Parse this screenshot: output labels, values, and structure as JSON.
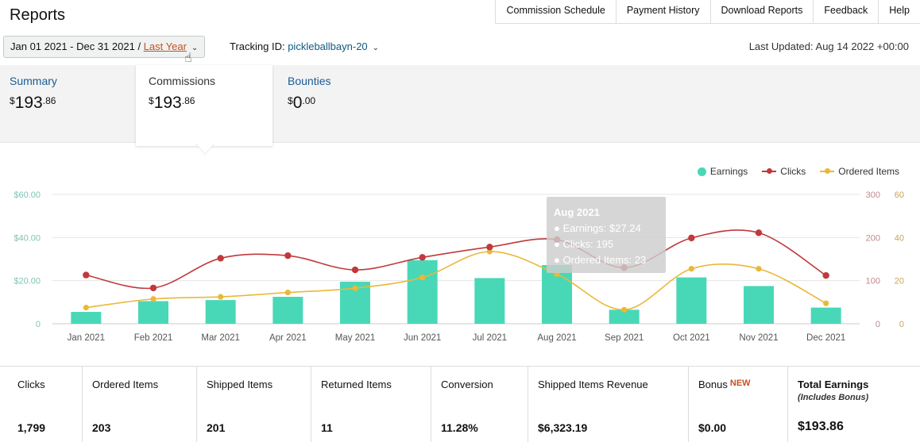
{
  "page_title": "Reports",
  "nav": [
    "Commission Schedule",
    "Payment History",
    "Download Reports",
    "Feedback",
    "Help"
  ],
  "date_range": {
    "range": "Jan 01 2021 - Dec 31 2021",
    "separator": " / ",
    "preset": "Last Year"
  },
  "tracking": {
    "label": "Tracking ID: ",
    "id": "pickleballbayn-20"
  },
  "last_updated": "Last Updated: Aug 14 2022 +00:00",
  "tabs": [
    {
      "label": "Summary",
      "currency": "$",
      "whole": "193",
      "cents": ".86"
    },
    {
      "label": "Commissions",
      "currency": "$",
      "whole": "193",
      "cents": ".86"
    },
    {
      "label": "Bounties",
      "currency": "$",
      "whole": "0",
      "cents": ".00"
    }
  ],
  "legend": [
    {
      "label": "Earnings",
      "color": "#48d8b7"
    },
    {
      "label": "Clicks",
      "color": "#c0393c"
    },
    {
      "label": "Ordered Items",
      "color": "#eab838"
    }
  ],
  "tooltip": {
    "title": "Aug 2021",
    "earnings": "Earnings: $27.24",
    "clicks": "Clicks: 195",
    "ordered": "Ordered Items: 23"
  },
  "chart_data": {
    "type": "bar",
    "categories": [
      "Jan 2021",
      "Feb 2021",
      "Mar 2021",
      "Apr 2021",
      "May 2021",
      "Jun 2021",
      "Jul 2021",
      "Aug 2021",
      "Sep 2021",
      "Oct 2021",
      "Nov 2021",
      "Dec 2021"
    ],
    "series": [
      {
        "name": "Earnings",
        "type": "bar",
        "axis": "left",
        "color": "#48d8b7",
        "values": [
          5.5,
          10.5,
          11,
          12.5,
          19.5,
          29.5,
          21.2,
          27.24,
          6.5,
          21.5,
          17.5,
          7.5
        ]
      },
      {
        "name": "Clicks",
        "type": "line",
        "axis": "right1",
        "color": "#c0393c",
        "values": [
          113,
          83,
          152,
          158,
          125,
          154,
          178,
          195,
          130,
          199,
          211,
          112
        ]
      },
      {
        "name": "Ordered Items",
        "type": "line",
        "axis": "right2",
        "color": "#eab838",
        "values": [
          7.5,
          11.5,
          12.5,
          14.5,
          16.5,
          21.5,
          33.5,
          23,
          6.5,
          25.5,
          25.5,
          9.5
        ]
      }
    ],
    "axes": {
      "left": {
        "ticks": [
          "$60.00",
          "$40.00",
          "$20.00",
          "0"
        ],
        "ylim": [
          0,
          60
        ]
      },
      "right1": {
        "ticks": [
          "300",
          "200",
          "100",
          "0"
        ],
        "ylim": [
          0,
          300
        ]
      },
      "right2": {
        "ticks": [
          "60",
          "40",
          "20",
          "0"
        ],
        "ylim": [
          0,
          60
        ]
      }
    },
    "grid": true,
    "legend_position": "top-right"
  },
  "stats": [
    {
      "label": "Clicks",
      "value": "1,799"
    },
    {
      "label": "Ordered Items",
      "value": "203"
    },
    {
      "label": "Shipped Items",
      "value": "201"
    },
    {
      "label": "Returned Items",
      "value": "11"
    },
    {
      "label": "Conversion",
      "value": "11.28%"
    },
    {
      "label": "Shipped Items Revenue",
      "value": "$6,323.19"
    },
    {
      "label": "Bonus",
      "badge": "NEW",
      "value": "$0.00"
    },
    {
      "label": "Total Earnings",
      "sub": "(Includes Bonus)",
      "value": "$193.86"
    }
  ]
}
